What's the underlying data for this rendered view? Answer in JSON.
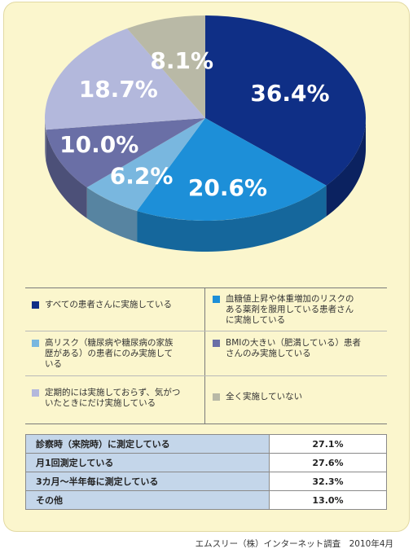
{
  "chart_data": {
    "type": "pie",
    "values": [
      36.4,
      20.6,
      6.2,
      10.0,
      18.7,
      8.1
    ],
    "labels": [
      "36.4%",
      "20.6%",
      "6.2%",
      "10.0%",
      "18.7%",
      "8.1%"
    ],
    "colors": [
      "#0f2f86",
      "#1d8fd8",
      "#79b7df",
      "#6a6fa6",
      "#b3b8dc",
      "#b9b9a6"
    ],
    "legend": [
      "すべての患者さんに実施している",
      "血糖値上昇や体重増加のリスクのある薬剤を服用している患者さんに実施している",
      "高リスク（糖尿病や糖尿病の家族歴がある）の患者にのみ実施している",
      "BMIの大きい（肥満している）患者さんのみ実施している",
      "定期的には実施しておらず、気がついたときにだけ実施している",
      "全く実施していない"
    ]
  },
  "legend_lines": {
    "l0": [
      "すべての患者さんに実施している"
    ],
    "l1": [
      "血糖値上昇や体重増加のリスクの",
      "ある薬剤を服用している患者さん",
      "に実施している"
    ],
    "l2": [
      "高リスク（糖尿病や糖尿病の家族",
      "歴がある）の患者にのみ実施して",
      "いる"
    ],
    "l3": [
      "BMIの大きい（肥満している）患者",
      "さんのみ実施している"
    ],
    "l4": [
      "定期的には実施しておらず、気がつ",
      "いたときにだけ実施している"
    ],
    "l5": [
      "全く実施していない"
    ]
  },
  "table": [
    {
      "label": "診察時（来院時）に測定している",
      "value": "27.1%"
    },
    {
      "label": "月1回測定している",
      "value": "27.6%"
    },
    {
      "label": "3カ月〜半年毎に測定している",
      "value": "32.3%"
    },
    {
      "label": "その他",
      "value": "13.0%"
    }
  ],
  "source": "エムスリー（株）インターネット調査　2010年4月"
}
